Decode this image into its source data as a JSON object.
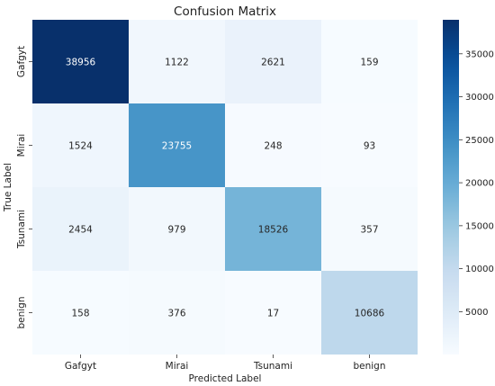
{
  "chart_data": {
    "type": "heatmap",
    "title": "Confusion Matrix",
    "xlabel": "Predicted Label",
    "ylabel": "True Label",
    "x_categories": [
      "Gafgyt",
      "Mirai",
      "Tsunami",
      "benign"
    ],
    "y_categories": [
      "Gafgyt",
      "Mirai",
      "Tsunami",
      "benign"
    ],
    "values": [
      [
        38956,
        1122,
        2621,
        159
      ],
      [
        1524,
        23755,
        248,
        93
      ],
      [
        2454,
        979,
        18526,
        357
      ],
      [
        158,
        376,
        17,
        10686
      ]
    ],
    "colormap": "Blues",
    "colorbar": {
      "range": [
        17,
        38956
      ],
      "ticks": [
        5000,
        10000,
        15000,
        20000,
        25000,
        30000,
        35000
      ]
    }
  }
}
